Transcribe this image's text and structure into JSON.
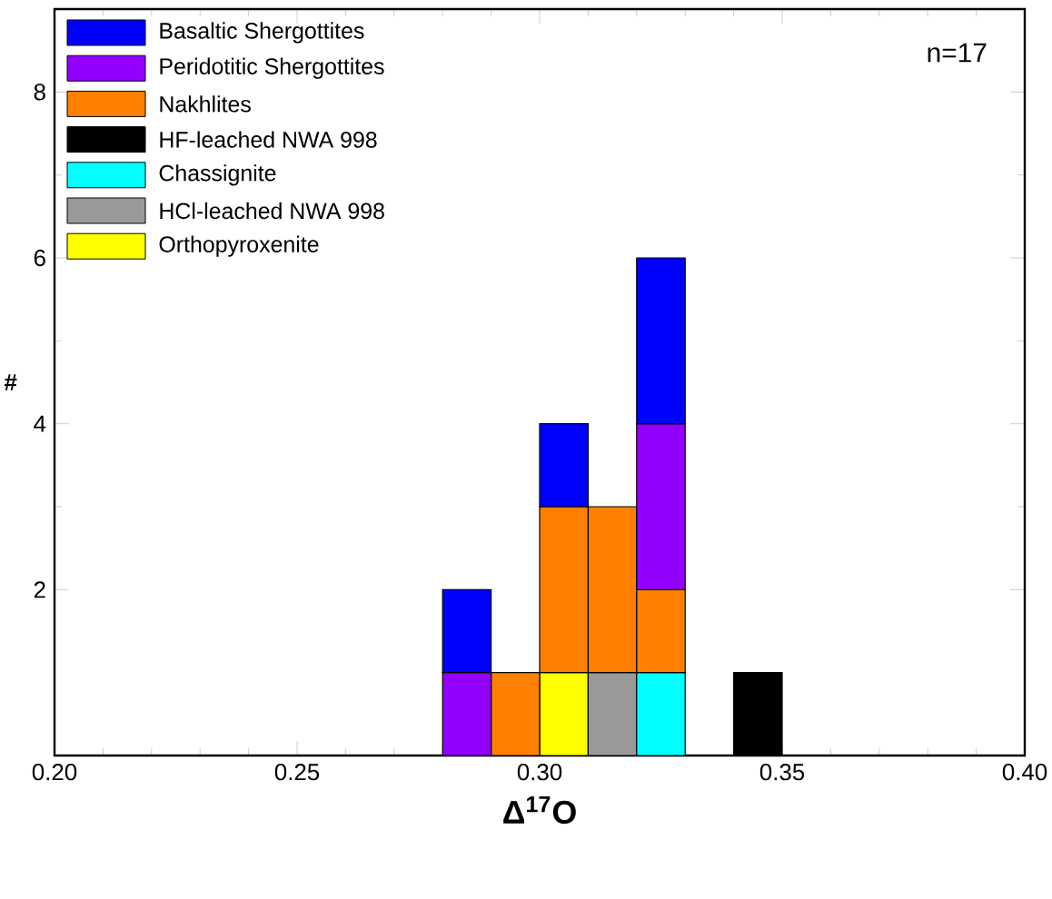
{
  "chart_data": {
    "type": "bar",
    "stacked": true,
    "xlabel": "Δ$^{17}$O",
    "ylabel": "#",
    "annotations": [
      "n=17"
    ],
    "x": [
      0.285,
      0.295,
      0.305,
      0.315,
      0.325,
      0.345
    ],
    "series": [
      {
        "name": "Orthopyroxenite",
        "color": "#ffff00",
        "values": [
          0,
          0,
          1,
          0,
          0,
          0
        ]
      },
      {
        "name": "HCl-leached NWA 998",
        "color": "#999999",
        "values": [
          0,
          0,
          0,
          1,
          0,
          0
        ]
      },
      {
        "name": "Chassignite",
        "color": "#00ffff",
        "values": [
          0,
          0,
          0,
          0,
          1,
          0
        ]
      },
      {
        "name": "HF-leached NWA 998",
        "color": "#000000",
        "values": [
          0,
          0,
          0,
          0,
          0,
          1
        ]
      },
      {
        "name": "Nakhlites",
        "color": "#ff8000",
        "values": [
          0,
          1,
          2,
          2,
          1,
          0
        ]
      },
      {
        "name": "Peridotitic Shergottites",
        "color": "#9400ff",
        "values": [
          1,
          0,
          0,
          0,
          2,
          0
        ]
      },
      {
        "name": "Basaltic Shergottites",
        "color": "#0000ff",
        "values": [
          1,
          0,
          1,
          0,
          2,
          0
        ]
      }
    ],
    "xlim": [
      0.2,
      0.4
    ],
    "xticks": [
      {
        "value": 0.2,
        "label": "0.20"
      },
      0.25,
      {
        "value": 0.3,
        "label": "0.30"
      },
      0.35,
      {
        "value": 0.4,
        "label": "0.40"
      }
    ],
    "ylim": [
      0,
      9
    ],
    "yticks": [
      2,
      4,
      6,
      8
    ],
    "legend": "top left",
    "grid": false
  }
}
